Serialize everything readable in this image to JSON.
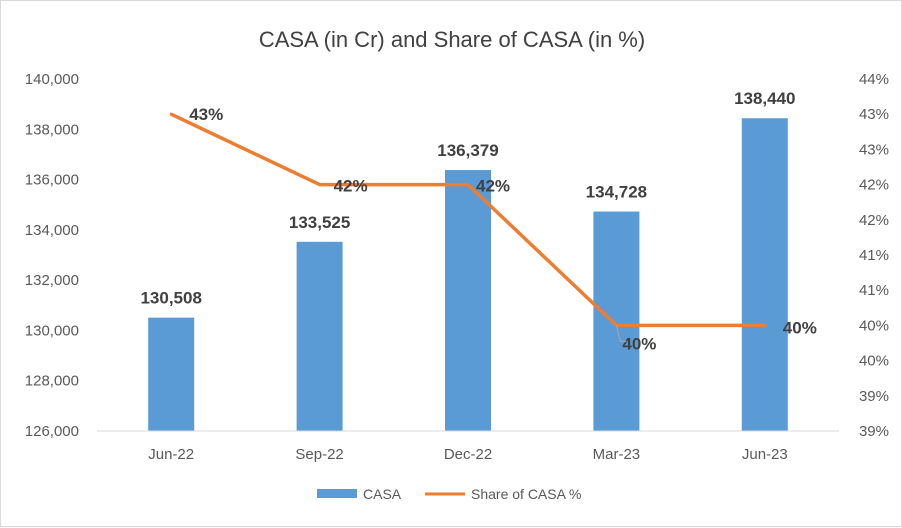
{
  "chart_data": {
    "type": "bar",
    "title": "CASA (in Cr) and Share of CASA (in %)",
    "categories": [
      "Jun-22",
      "Sep-22",
      "Dec-22",
      "Mar-23",
      "Jun-23"
    ],
    "series": [
      {
        "name": "CASA",
        "type": "bar",
        "axis": "left",
        "values": [
          130508,
          133525,
          136379,
          134728,
          138440
        ],
        "labels": [
          "130,508",
          "133,525",
          "136,379",
          "134,728",
          "138,440"
        ],
        "color": "#5b9bd5"
      },
      {
        "name": "Share of CASA %",
        "type": "line",
        "axis": "right",
        "values": [
          43,
          42,
          42,
          40,
          40
        ],
        "labels": [
          "43%",
          "42%",
          "42%",
          "40%",
          "40%"
        ],
        "color": "#ed7d31"
      }
    ],
    "y_left": {
      "ylim": [
        126000,
        140000
      ],
      "ticks": [
        126000,
        128000,
        130000,
        132000,
        134000,
        136000,
        138000,
        140000
      ],
      "tick_labels": [
        "126,000",
        "128,000",
        "130,000",
        "132,000",
        "134,000",
        "136,000",
        "138,000",
        "140,000"
      ]
    },
    "y_right": {
      "ylim": [
        38.5,
        43.5
      ],
      "ticks": [
        38.5,
        39,
        39.5,
        40,
        40.5,
        41,
        41.5,
        42,
        42.5,
        43,
        43.5
      ],
      "tick_labels": [
        "39%",
        "39%",
        "40%",
        "40%",
        "41%",
        "41%",
        "42%",
        "42%",
        "43%",
        "43%",
        "44%"
      ]
    },
    "legend": {
      "position": "bottom",
      "entries": [
        "CASA",
        "Share of CASA %"
      ]
    },
    "grid": false
  }
}
